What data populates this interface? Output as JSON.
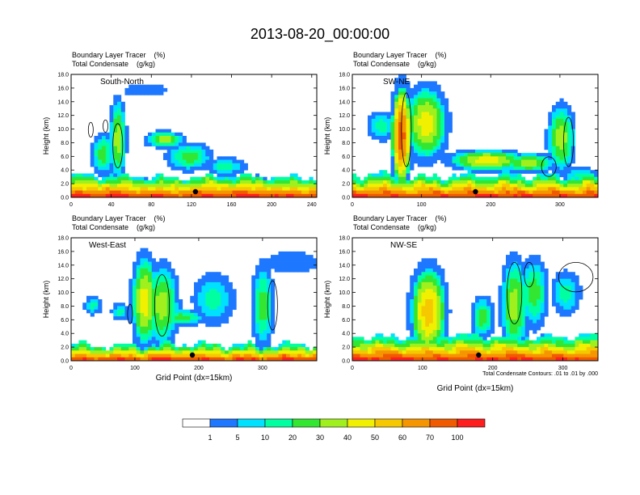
{
  "title": "2013-08-20_00:00:00",
  "colors": {
    "scale": [
      "#ffffff",
      "#1e78ff",
      "#00e1ff",
      "#00ffa0",
      "#32e632",
      "#a0f01e",
      "#f0f000",
      "#f5c800",
      "#f59600",
      "#f05a00",
      "#ff1e1e"
    ],
    "contour": "#000000"
  },
  "colorbar": {
    "labels": [
      "1",
      "5",
      "10",
      "20",
      "30",
      "40",
      "50",
      "60",
      "70",
      "100"
    ]
  },
  "contour_note": "Total Condensate Contours: .01 to .01 by .000",
  "chart_data": [
    {
      "type": "heatmap",
      "panel_label": "South-North",
      "header_line1": "Boundary Layer Tracer    (%)",
      "header_line2": "Total Condensate    (g/kg)",
      "xlabel": "",
      "ylabel": "Height (km)",
      "xlim": [
        0,
        245
      ],
      "ylim": [
        0,
        18
      ],
      "xticks": [
        "0",
        "40",
        "80",
        "120",
        "160",
        "200",
        "240"
      ],
      "yticks": [
        "0.0",
        "2.0",
        "4.0",
        "6.0",
        "8.0",
        "10.0",
        "12.0",
        "14.0",
        "16.0",
        "18.0"
      ],
      "marker_x": 124
    },
    {
      "type": "heatmap",
      "panel_label": "SW-NE",
      "header_line1": "Boundary Layer Tracer    (%)",
      "header_line2": "Total Condensate    (g/kg)",
      "xlabel": "",
      "ylabel": "Height (km)",
      "xlim": [
        0,
        355
      ],
      "ylim": [
        0,
        18
      ],
      "xticks": [
        "0",
        "100",
        "200",
        "300"
      ],
      "yticks": [
        "0.0",
        "2.0",
        "4.0",
        "6.0",
        "8.0",
        "10.0",
        "12.0",
        "14.0",
        "16.0",
        "18.0"
      ],
      "marker_x": 178
    },
    {
      "type": "heatmap",
      "panel_label": "West-East",
      "header_line1": "Boundary Layer Tracer    (%)",
      "header_line2": "Total Condensate    (g/kg)",
      "xlabel": "Grid Point (dx=15km)",
      "ylabel": "Height (km)",
      "xlim": [
        0,
        385
      ],
      "ylim": [
        0,
        18
      ],
      "xticks": [
        "0",
        "100",
        "200",
        "300"
      ],
      "yticks": [
        "0.0",
        "2.0",
        "4.0",
        "6.0",
        "8.0",
        "10.0",
        "12.0",
        "14.0",
        "16.0",
        "18.0"
      ],
      "marker_x": 190
    },
    {
      "type": "heatmap",
      "panel_label": "NW-SE",
      "header_line1": "Boundary Layer Tracer    (%)",
      "header_line2": "Total Condensate    (g/kg)",
      "xlabel": "Grid Point (dx=15km)",
      "ylabel": "Height (km)",
      "xlim": [
        0,
        350
      ],
      "ylim": [
        0,
        18
      ],
      "xticks": [
        "0",
        "100",
        "200",
        "300"
      ],
      "yticks": [
        "0.0",
        "2.0",
        "4.0",
        "6.0",
        "8.0",
        "10.0",
        "12.0",
        "14.0",
        "16.0",
        "18.0"
      ],
      "marker_x": 180
    }
  ]
}
